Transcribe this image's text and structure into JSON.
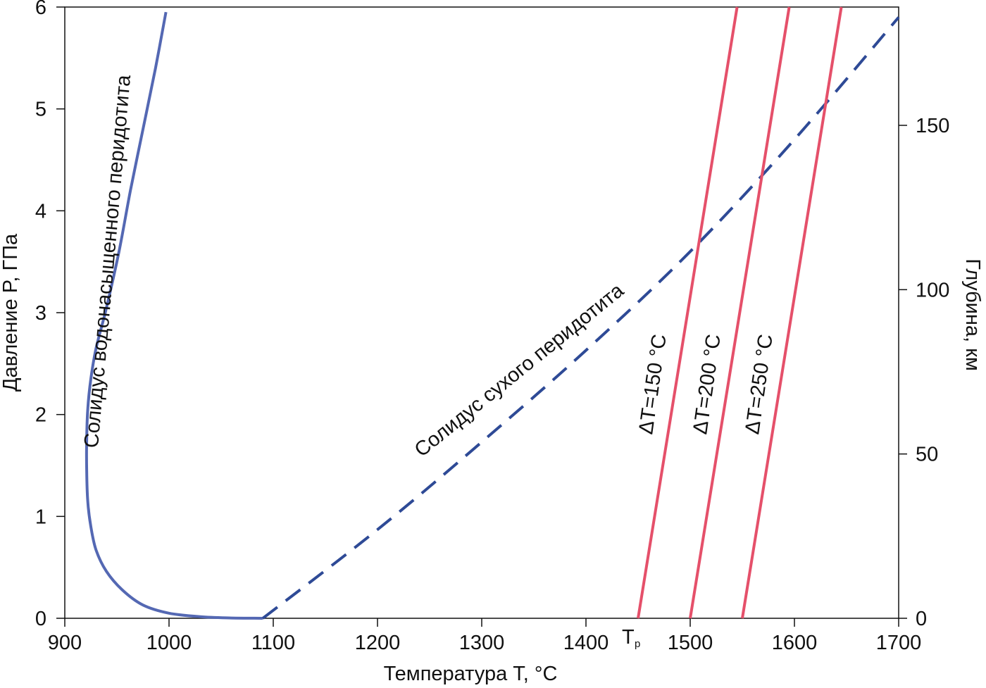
{
  "chart_data": {
    "type": "line",
    "xlabel": "Температура T, °C",
    "ylabel": "Давление P, ГПа",
    "y2label": "Глубина, км",
    "xlim": [
      900,
      1700
    ],
    "ylim": [
      0,
      6
    ],
    "y2lim": [
      0,
      186
    ],
    "x_ticks": [
      900,
      1000,
      1100,
      1200,
      1300,
      1400,
      1500,
      1600,
      1700
    ],
    "y_ticks": [
      0,
      1,
      2,
      3,
      4,
      5,
      6
    ],
    "y2_ticks": [
      0,
      50,
      100,
      150
    ],
    "grid": false,
    "legend": "none",
    "series": [
      {
        "name": "Солидус водонасыщенного перидотита",
        "style": "solid",
        "color": "#5468b3",
        "x": [
          1090,
          1060,
          1030,
          1000,
          975,
          955,
          940,
          930,
          925,
          922,
          921,
          921,
          922,
          925,
          930,
          940,
          952,
          963,
          975,
          987,
          997
        ],
        "y": [
          0,
          0.003,
          0.015,
          0.05,
          0.13,
          0.28,
          0.46,
          0.67,
          0.9,
          1.15,
          1.45,
          1.75,
          2.05,
          2.35,
          2.65,
          3.05,
          3.6,
          4.2,
          4.8,
          5.4,
          5.95
        ]
      },
      {
        "name": "Солидус сухого перидотита",
        "style": "dashed",
        "color": "#2e4a96",
        "x": [
          1090,
          1200,
          1300,
          1400,
          1500,
          1600,
          1700
        ],
        "y": [
          0,
          0.87,
          1.73,
          2.63,
          3.6,
          4.7,
          5.9
        ]
      },
      {
        "name": "ΔT=150 °C",
        "style": "solid",
        "color": "#e5506a",
        "x": [
          1450,
          1545
        ],
        "y": [
          0,
          6
        ]
      },
      {
        "name": "ΔT=200 °C",
        "style": "solid",
        "color": "#e5506a",
        "x": [
          1500,
          1595
        ],
        "y": [
          0,
          6
        ]
      },
      {
        "name": "ΔT=250 °C",
        "style": "solid",
        "color": "#e5506a",
        "x": [
          1550,
          1645
        ],
        "y": [
          0,
          6
        ]
      }
    ],
    "annotations": {
      "wet_solidus_label": "Солидус водонасыщенного перидотита",
      "dry_solidus_label": "Солидус сухого перидотита",
      "tp_label": "T",
      "tp_subscript": "p",
      "tp_x": 1450
    }
  }
}
